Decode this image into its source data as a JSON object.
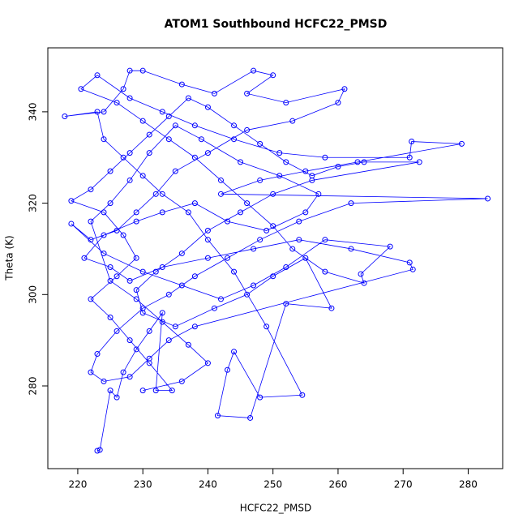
{
  "chart_data": {
    "type": "line",
    "marker": "circle",
    "color": "#0000ff",
    "title": "ATOM1 Southbound HCFC22_PMSD",
    "x_label": "HCFC22_PMSD",
    "y_label": "Theta (K)",
    "xlim": [
      215.4,
      285.3
    ],
    "ylim": [
      261.9,
      354.0
    ],
    "xticks": [
      220,
      230,
      240,
      250,
      260,
      270,
      280
    ],
    "yticks": [
      280,
      300,
      320,
      340
    ],
    "x": [
      223,
      223.4,
      225,
      226,
      227,
      229,
      231,
      233,
      232,
      234.5,
      231,
      228,
      225,
      222,
      226,
      229,
      227,
      224,
      219,
      222,
      225,
      228,
      231,
      234,
      237,
      240,
      244,
      248,
      252,
      256,
      260,
      264,
      272.5,
      256,
      250,
      245,
      240,
      236,
      232,
      229,
      230,
      235,
      241,
      246,
      250,
      255,
      259,
      252,
      246.5,
      241.5,
      243,
      244,
      248,
      254.5,
      249,
      244,
      240,
      237,
      233,
      230,
      227,
      224,
      223,
      218,
      224,
      227,
      228,
      230,
      236,
      241,
      247,
      250,
      246,
      252,
      261,
      260,
      253,
      246,
      240,
      235,
      232,
      229,
      226,
      222,
      219,
      224,
      230,
      236,
      242,
      247,
      252,
      258,
      268,
      263.5,
      264,
      258,
      253,
      250,
      246,
      242,
      238,
      234,
      230,
      226,
      220.5,
      223,
      228,
      233,
      238,
      244,
      251,
      258,
      271,
      271.3,
      279,
      263,
      255,
      248,
      242,
      283,
      262,
      254,
      248,
      243,
      238,
      234,
      230,
      226,
      223,
      222,
      224,
      228,
      231,
      234,
      238,
      271.5,
      271,
      262,
      254,
      247,
      240,
      233,
      228,
      225,
      221,
      224,
      229,
      233,
      238,
      243,
      249,
      255,
      257,
      251,
      245,
      239,
      235,
      231,
      228,
      225,
      222,
      225,
      229,
      233,
      237,
      240,
      236,
      230
    ],
    "values": [
      265.8,
      266,
      279,
      277.5,
      283,
      288,
      292,
      296,
      279,
      279,
      285,
      290,
      295,
      299,
      304,
      308,
      313,
      318,
      320.5,
      323,
      327,
      331,
      335,
      339,
      343,
      341,
      337,
      333,
      329,
      326,
      328,
      329,
      329,
      325,
      322,
      318,
      314,
      309,
      305,
      301,
      296,
      293,
      297,
      300,
      304,
      308,
      297,
      298,
      273,
      273.5,
      283.5,
      287.5,
      277.5,
      278,
      293,
      305,
      312,
      318,
      322,
      326,
      330,
      334,
      340,
      339,
      340,
      345,
      349,
      349,
      346,
      344,
      349,
      348,
      344,
      342,
      345,
      342,
      338,
      336,
      331,
      327,
      322,
      318,
      314,
      312,
      315.5,
      309,
      305,
      302,
      299,
      302,
      306,
      312,
      310.5,
      304.5,
      302.5,
      305,
      310,
      315,
      320,
      325,
      330,
      334,
      338,
      342,
      345,
      348,
      343,
      340,
      337,
      334,
      331,
      330,
      330,
      333.5,
      333,
      329,
      327,
      325,
      322,
      321,
      320,
      316,
      312,
      308,
      304,
      300,
      297,
      292,
      287,
      283,
      281,
      282,
      286,
      290,
      293,
      305.5,
      307,
      310,
      312,
      310,
      308,
      306,
      303,
      306,
      308,
      313,
      316,
      318,
      320,
      316,
      314,
      318,
      322,
      326,
      329,
      334,
      337,
      331,
      325,
      320,
      316,
      303,
      299,
      294,
      289,
      285,
      281,
      279
    ]
  }
}
